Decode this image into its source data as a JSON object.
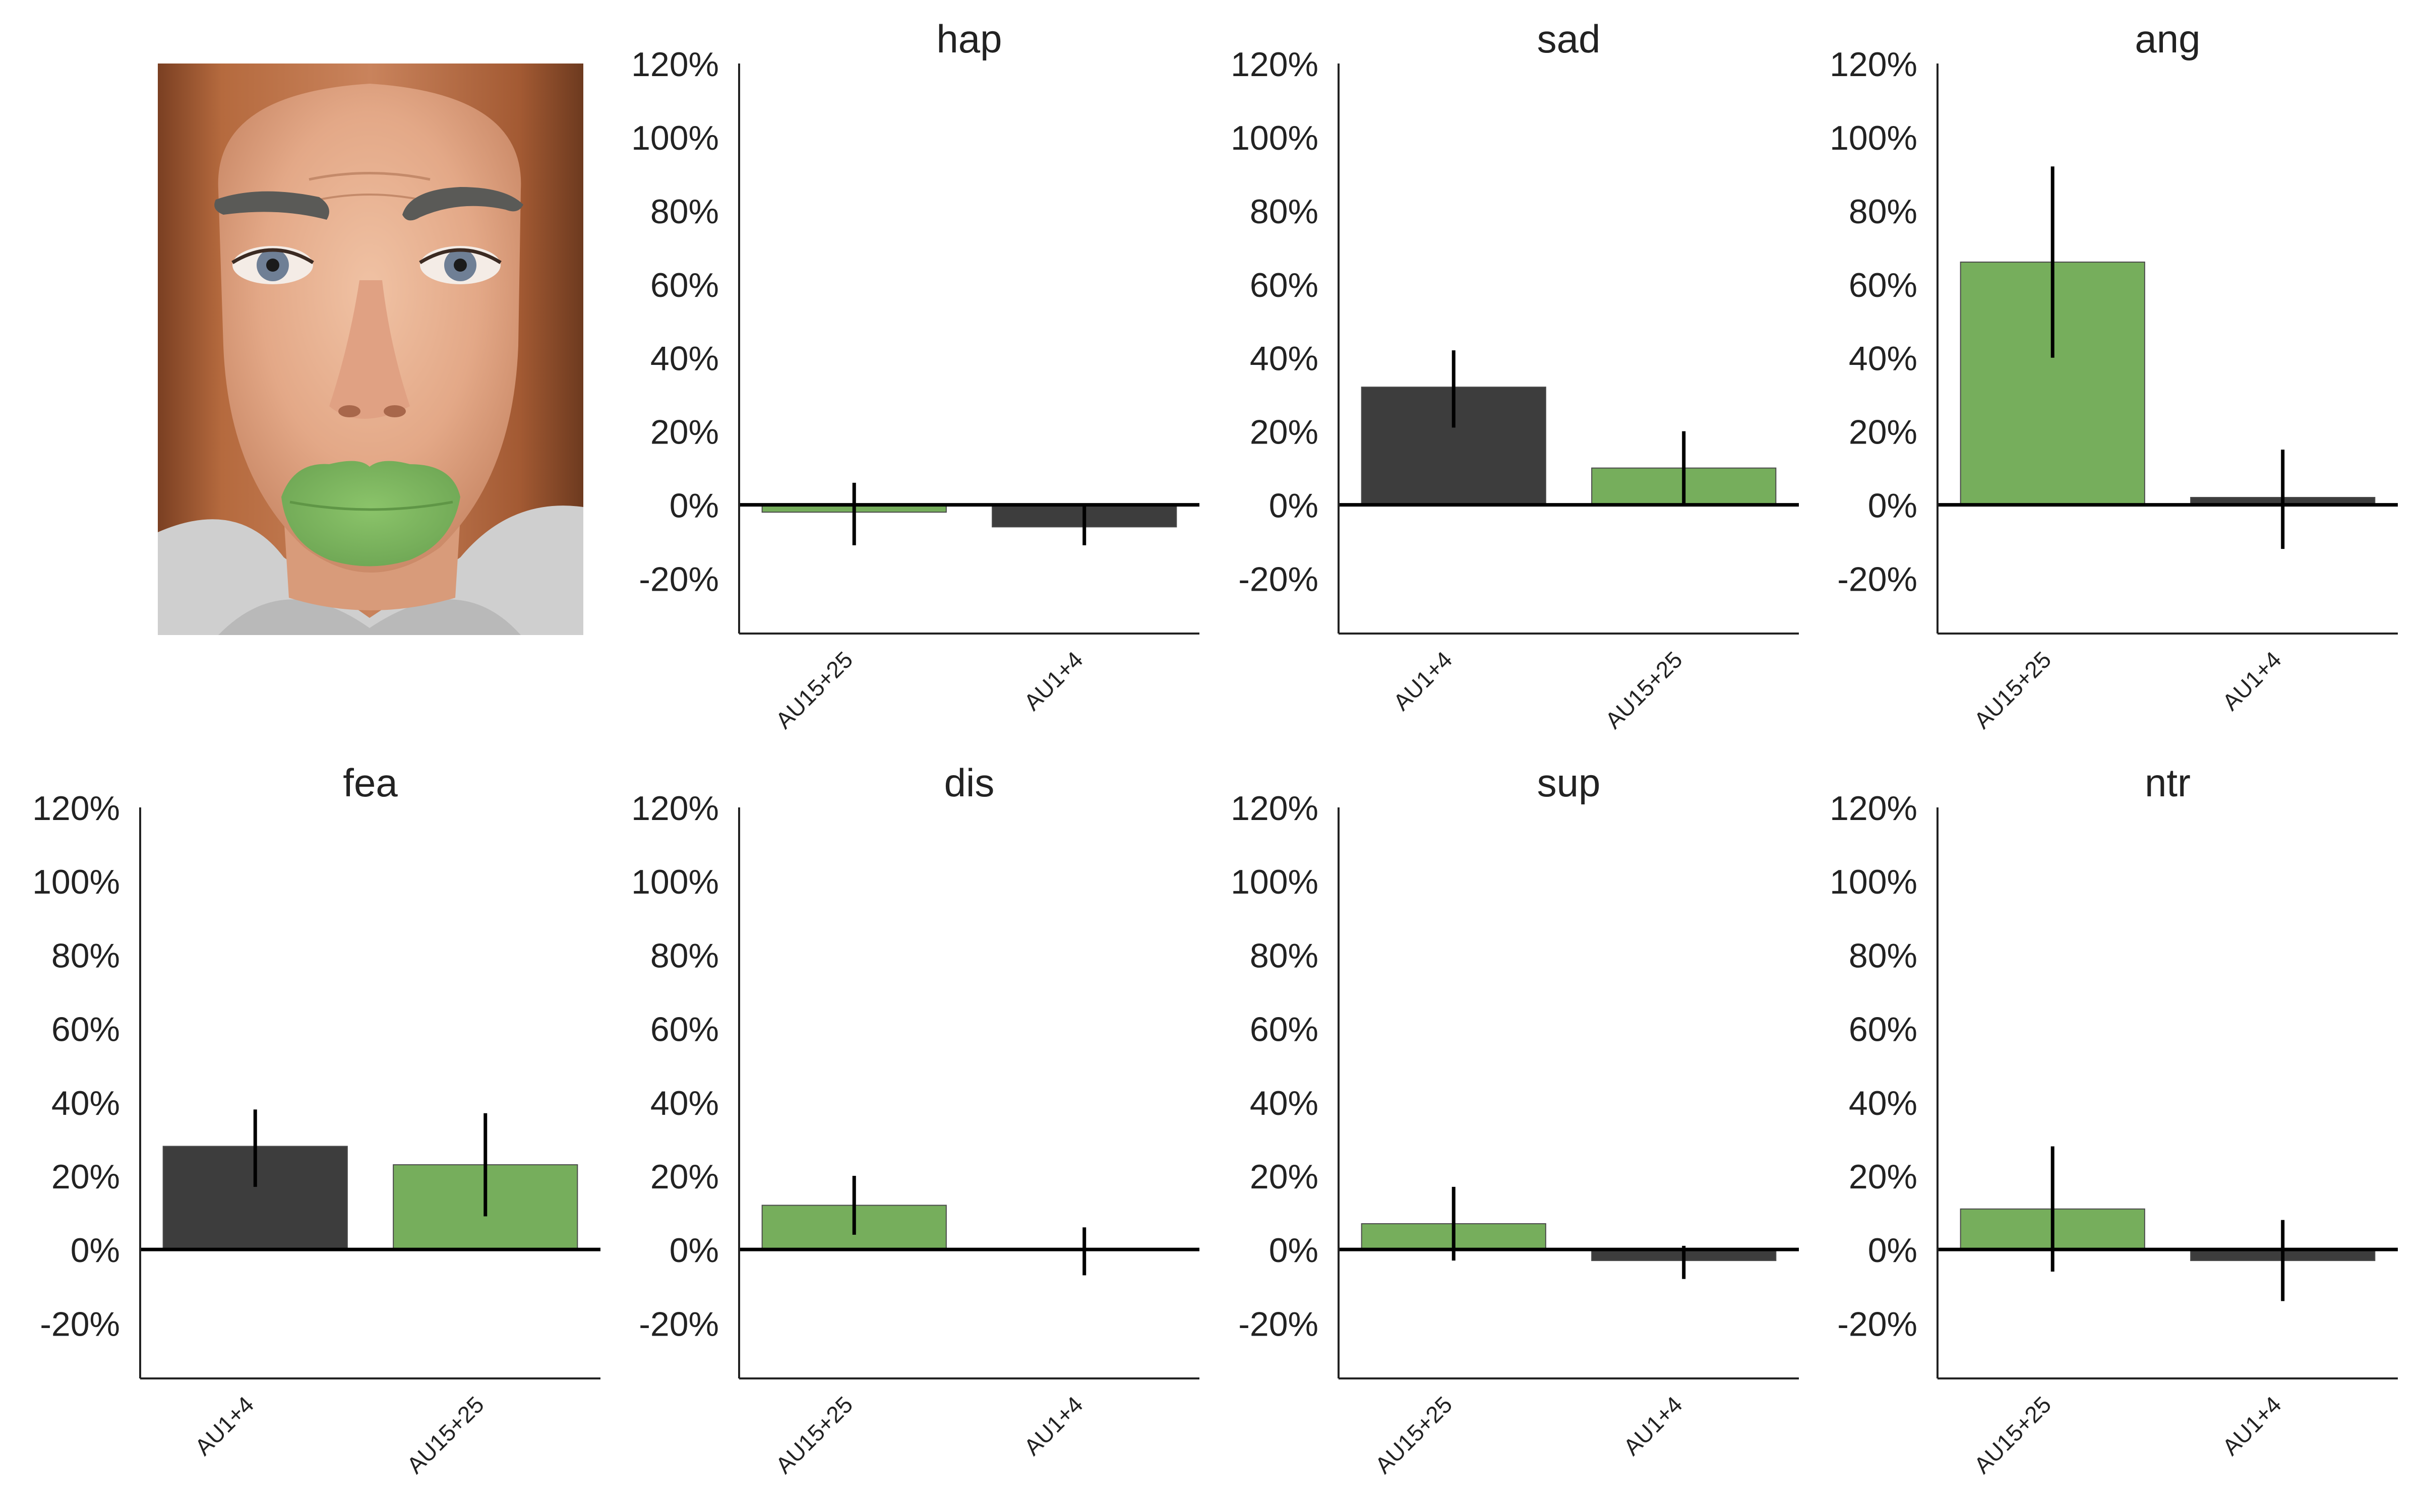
{
  "colors": {
    "green": "#76ae5c",
    "dark": "#3d3d3d",
    "axis": "#222222",
    "errorbar": "#000000",
    "text": "#222222"
  },
  "icons": {
    "face": "face-with-au15-25-highlight-icon"
  },
  "chart_data": [
    {
      "type": "bar",
      "title": "hap",
      "categories": [
        "AU15+25",
        "AU1+4"
      ],
      "values": [
        -2,
        -6
      ],
      "errors": [
        [
          -11,
          6
        ],
        [
          -11,
          0
        ]
      ],
      "bar_colors": [
        "green",
        "dark"
      ],
      "ylim": [
        -35,
        120
      ],
      "yticks": [
        -20,
        0,
        20,
        40,
        60,
        80,
        100,
        120
      ],
      "ytick_labels": [
        "-20%",
        "0%",
        "20%",
        "40%",
        "60%",
        "80%",
        "100%",
        "120%"
      ],
      "grid": false
    },
    {
      "type": "bar",
      "title": "sad",
      "categories": [
        "AU1+4",
        "AU15+25"
      ],
      "values": [
        32,
        10
      ],
      "errors": [
        [
          21,
          42
        ],
        [
          0,
          20
        ]
      ],
      "bar_colors": [
        "dark",
        "green"
      ],
      "ylim": [
        -35,
        120
      ],
      "yticks": [
        -20,
        0,
        20,
        40,
        60,
        80,
        100,
        120
      ],
      "ytick_labels": [
        "-20%",
        "0%",
        "20%",
        "40%",
        "60%",
        "80%",
        "100%",
        "120%"
      ],
      "grid": false
    },
    {
      "type": "bar",
      "title": "ang",
      "categories": [
        "AU15+25",
        "AU1+4"
      ],
      "values": [
        66,
        2
      ],
      "errors": [
        [
          40,
          92
        ],
        [
          -12,
          15
        ]
      ],
      "bar_colors": [
        "green",
        "dark"
      ],
      "ylim": [
        -35,
        120
      ],
      "yticks": [
        -20,
        0,
        20,
        40,
        60,
        80,
        100,
        120
      ],
      "ytick_labels": [
        "-20%",
        "0%",
        "20%",
        "40%",
        "60%",
        "80%",
        "100%",
        "120%"
      ],
      "grid": false
    },
    {
      "type": "bar",
      "title": "fea",
      "categories": [
        "AU1+4",
        "AU15+25"
      ],
      "values": [
        28,
        23
      ],
      "errors": [
        [
          17,
          38
        ],
        [
          9,
          37
        ]
      ],
      "bar_colors": [
        "dark",
        "green"
      ],
      "ylim": [
        -35,
        120
      ],
      "yticks": [
        -20,
        0,
        20,
        40,
        60,
        80,
        100,
        120
      ],
      "ytick_labels": [
        "-20%",
        "0%",
        "20%",
        "40%",
        "60%",
        "80%",
        "100%",
        "120%"
      ],
      "grid": false
    },
    {
      "type": "bar",
      "title": "dis",
      "categories": [
        "AU15+25",
        "AU1+4"
      ],
      "values": [
        12,
        0
      ],
      "errors": [
        [
          4,
          20
        ],
        [
          -7,
          6
        ]
      ],
      "bar_colors": [
        "green",
        "dark"
      ],
      "ylim": [
        -35,
        120
      ],
      "yticks": [
        -20,
        0,
        20,
        40,
        60,
        80,
        100,
        120
      ],
      "ytick_labels": [
        "-20%",
        "0%",
        "20%",
        "40%",
        "60%",
        "80%",
        "100%",
        "120%"
      ],
      "grid": false
    },
    {
      "type": "bar",
      "title": "sup",
      "categories": [
        "AU15+25",
        "AU1+4"
      ],
      "values": [
        7,
        -3
      ],
      "errors": [
        [
          -3,
          17
        ],
        [
          -8,
          1
        ]
      ],
      "bar_colors": [
        "green",
        "dark"
      ],
      "ylim": [
        -35,
        120
      ],
      "yticks": [
        -20,
        0,
        20,
        40,
        60,
        80,
        100,
        120
      ],
      "ytick_labels": [
        "-20%",
        "0%",
        "20%",
        "40%",
        "60%",
        "80%",
        "100%",
        "120%"
      ],
      "grid": false
    },
    {
      "type": "bar",
      "title": "ntr",
      "categories": [
        "AU15+25",
        "AU1+4"
      ],
      "values": [
        11,
        -3
      ],
      "errors": [
        [
          -6,
          28
        ],
        [
          -14,
          8
        ]
      ],
      "bar_colors": [
        "green",
        "dark"
      ],
      "ylim": [
        -35,
        120
      ],
      "yticks": [
        -20,
        0,
        20,
        40,
        60,
        80,
        100,
        120
      ],
      "ytick_labels": [
        "-20%",
        "0%",
        "20%",
        "40%",
        "60%",
        "80%",
        "100%",
        "120%"
      ],
      "grid": false
    }
  ]
}
